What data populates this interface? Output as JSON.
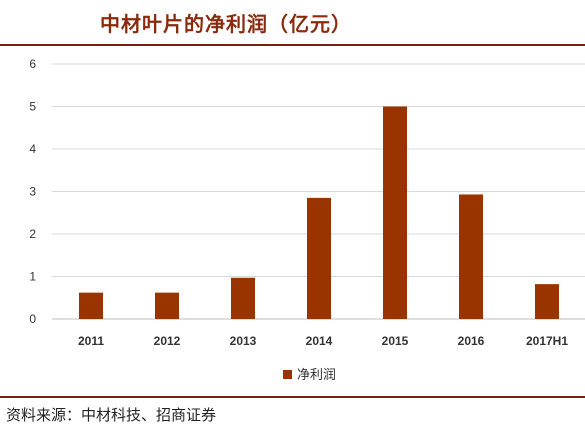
{
  "header": {
    "title": "中材叶片的净利润（亿元）"
  },
  "footer": {
    "source": "资料来源：中材科技、招商证券"
  },
  "colors": {
    "accent": "#993300",
    "rule": "#7A1F0A",
    "title": "#8B2A0E"
  },
  "chart_data": {
    "type": "bar",
    "categories": [
      "2011",
      "2012",
      "2013",
      "2014",
      "2015",
      "2016",
      "2017H1"
    ],
    "series": [
      {
        "name": "净利润",
        "values": [
          0.62,
          0.62,
          0.97,
          2.85,
          5.0,
          2.93,
          0.82
        ]
      }
    ],
    "ylim": [
      0,
      6
    ],
    "yticks": [
      "0",
      "1",
      "2",
      "3",
      "4",
      "5",
      "6"
    ],
    "grid": true,
    "legend": "bottom"
  }
}
